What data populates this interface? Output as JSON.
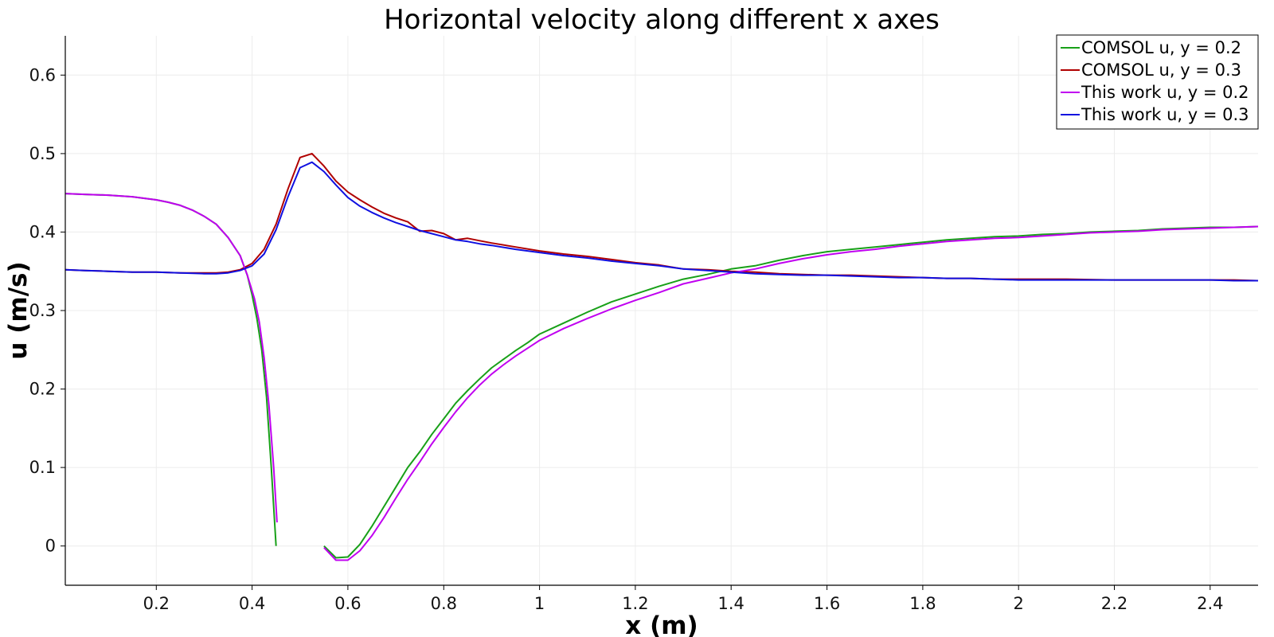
{
  "chart_data": {
    "type": "line",
    "title": "Horizontal velocity along different x axes",
    "xlabel": "x (m)",
    "ylabel": "u (m/s)",
    "xlim": [
      0.01,
      2.5
    ],
    "ylim": [
      -0.05,
      0.65
    ],
    "xticks": [
      0.2,
      0.4,
      0.6,
      0.8,
      1,
      1.2,
      1.4,
      1.6,
      1.8,
      2,
      2.2,
      2.4
    ],
    "xtick_labels": [
      "0.2",
      "0.4",
      "0.6",
      "0.8",
      "1",
      "1.2",
      "1.4",
      "1.6",
      "1.8",
      "2",
      "2.2",
      "2.4"
    ],
    "yticks": [
      0,
      0.1,
      0.2,
      0.3,
      0.4,
      0.5,
      0.6
    ],
    "ytick_labels": [
      "0",
      "0.1",
      "0.2",
      "0.3",
      "0.4",
      "0.5",
      "0.6"
    ],
    "grid": true,
    "legend_position": "top-right",
    "series": [
      {
        "name": "COMSOL u, y = 0.2",
        "color": "#18a018",
        "segments": [
          [
            [
              0.01,
              0.449
            ],
            [
              0.05,
              0.448
            ],
            [
              0.1,
              0.447
            ],
            [
              0.15,
              0.445
            ],
            [
              0.2,
              0.441
            ],
            [
              0.225,
              0.438
            ],
            [
              0.25,
              0.434
            ],
            [
              0.275,
              0.428
            ],
            [
              0.3,
              0.42
            ],
            [
              0.325,
              0.41
            ],
            [
              0.35,
              0.393
            ],
            [
              0.375,
              0.37
            ],
            [
              0.39,
              0.345
            ],
            [
              0.4,
              0.32
            ],
            [
              0.41,
              0.29
            ],
            [
              0.42,
              0.25
            ],
            [
              0.43,
              0.19
            ],
            [
              0.44,
              0.1
            ],
            [
              0.45,
              0.0
            ]
          ],
          [
            [
              0.55,
              0.0
            ],
            [
              0.575,
              -0.015
            ],
            [
              0.6,
              -0.014
            ],
            [
              0.625,
              0.002
            ],
            [
              0.65,
              0.025
            ],
            [
              0.675,
              0.05
            ],
            [
              0.7,
              0.075
            ],
            [
              0.725,
              0.1
            ],
            [
              0.75,
              0.12
            ],
            [
              0.775,
              0.142
            ],
            [
              0.8,
              0.162
            ],
            [
              0.825,
              0.182
            ],
            [
              0.85,
              0.198
            ],
            [
              0.875,
              0.213
            ],
            [
              0.9,
              0.227
            ],
            [
              0.925,
              0.238
            ],
            [
              0.95,
              0.249
            ],
            [
              0.975,
              0.259
            ],
            [
              1.0,
              0.27
            ],
            [
              1.05,
              0.284
            ],
            [
              1.1,
              0.298
            ],
            [
              1.15,
              0.311
            ],
            [
              1.2,
              0.321
            ],
            [
              1.25,
              0.331
            ],
            [
              1.3,
              0.34
            ],
            [
              1.35,
              0.346
            ],
            [
              1.4,
              0.353
            ],
            [
              1.45,
              0.357
            ],
            [
              1.5,
              0.364
            ],
            [
              1.55,
              0.37
            ],
            [
              1.6,
              0.375
            ],
            [
              1.65,
              0.378
            ],
            [
              1.7,
              0.381
            ],
            [
              1.75,
              0.384
            ],
            [
              1.8,
              0.387
            ],
            [
              1.85,
              0.39
            ],
            [
              1.9,
              0.392
            ],
            [
              1.95,
              0.394
            ],
            [
              2.0,
              0.395
            ],
            [
              2.05,
              0.397
            ],
            [
              2.1,
              0.398
            ],
            [
              2.15,
              0.4
            ],
            [
              2.2,
              0.401
            ],
            [
              2.25,
              0.402
            ],
            [
              2.3,
              0.404
            ],
            [
              2.35,
              0.405
            ],
            [
              2.4,
              0.406
            ],
            [
              2.45,
              0.406
            ],
            [
              2.5,
              0.407
            ]
          ]
        ]
      },
      {
        "name": "COMSOL u, y = 0.3",
        "color": "#b00000",
        "segments": [
          [
            [
              0.01,
              0.352
            ],
            [
              0.05,
              0.351
            ],
            [
              0.1,
              0.35
            ],
            [
              0.15,
              0.349
            ],
            [
              0.2,
              0.349
            ],
            [
              0.25,
              0.348
            ],
            [
              0.3,
              0.348
            ],
            [
              0.325,
              0.348
            ],
            [
              0.35,
              0.349
            ],
            [
              0.375,
              0.352
            ],
            [
              0.4,
              0.36
            ],
            [
              0.425,
              0.378
            ],
            [
              0.45,
              0.41
            ],
            [
              0.475,
              0.455
            ],
            [
              0.5,
              0.495
            ],
            [
              0.525,
              0.5
            ],
            [
              0.55,
              0.484
            ],
            [
              0.575,
              0.465
            ],
            [
              0.6,
              0.451
            ],
            [
              0.625,
              0.441
            ],
            [
              0.65,
              0.432
            ],
            [
              0.675,
              0.424
            ],
            [
              0.7,
              0.418
            ],
            [
              0.725,
              0.413
            ],
            [
              0.75,
              0.401
            ],
            [
              0.775,
              0.402
            ],
            [
              0.8,
              0.398
            ],
            [
              0.825,
              0.39
            ],
            [
              0.85,
              0.392
            ],
            [
              0.875,
              0.389
            ],
            [
              0.9,
              0.386
            ],
            [
              0.95,
              0.381
            ],
            [
              1.0,
              0.376
            ],
            [
              1.05,
              0.372
            ],
            [
              1.1,
              0.369
            ],
            [
              1.15,
              0.365
            ],
            [
              1.2,
              0.361
            ],
            [
              1.25,
              0.358
            ],
            [
              1.3,
              0.353
            ],
            [
              1.35,
              0.352
            ],
            [
              1.4,
              0.35
            ],
            [
              1.45,
              0.349
            ],
            [
              1.5,
              0.347
            ],
            [
              1.55,
              0.346
            ],
            [
              1.6,
              0.345
            ],
            [
              1.65,
              0.345
            ],
            [
              1.7,
              0.344
            ],
            [
              1.75,
              0.343
            ],
            [
              1.8,
              0.342
            ],
            [
              1.85,
              0.341
            ],
            [
              1.9,
              0.341
            ],
            [
              1.95,
              0.34
            ],
            [
              2.0,
              0.34
            ],
            [
              2.1,
              0.34
            ],
            [
              2.2,
              0.339
            ],
            [
              2.3,
              0.339
            ],
            [
              2.4,
              0.339
            ],
            [
              2.45,
              0.339
            ],
            [
              2.5,
              0.338
            ]
          ]
        ]
      },
      {
        "name": "This work u, y = 0.2",
        "color": "#c000f0",
        "segments": [
          [
            [
              0.01,
              0.449
            ],
            [
              0.05,
              0.448
            ],
            [
              0.1,
              0.447
            ],
            [
              0.15,
              0.445
            ],
            [
              0.2,
              0.441
            ],
            [
              0.225,
              0.438
            ],
            [
              0.25,
              0.434
            ],
            [
              0.275,
              0.428
            ],
            [
              0.3,
              0.42
            ],
            [
              0.325,
              0.41
            ],
            [
              0.35,
              0.393
            ],
            [
              0.375,
              0.37
            ],
            [
              0.39,
              0.345
            ],
            [
              0.405,
              0.315
            ],
            [
              0.415,
              0.285
            ],
            [
              0.425,
              0.24
            ],
            [
              0.435,
              0.18
            ],
            [
              0.445,
              0.1
            ],
            [
              0.452,
              0.03
            ]
          ],
          [
            [
              0.55,
              -0.002
            ],
            [
              0.575,
              -0.018
            ],
            [
              0.6,
              -0.018
            ],
            [
              0.625,
              -0.006
            ],
            [
              0.65,
              0.013
            ],
            [
              0.675,
              0.036
            ],
            [
              0.7,
              0.061
            ],
            [
              0.725,
              0.085
            ],
            [
              0.75,
              0.107
            ],
            [
              0.775,
              0.13
            ],
            [
              0.8,
              0.151
            ],
            [
              0.825,
              0.171
            ],
            [
              0.85,
              0.189
            ],
            [
              0.875,
              0.205
            ],
            [
              0.9,
              0.219
            ],
            [
              0.925,
              0.231
            ],
            [
              0.95,
              0.242
            ],
            [
              0.975,
              0.252
            ],
            [
              1.0,
              0.262
            ],
            [
              1.05,
              0.277
            ],
            [
              1.1,
              0.29
            ],
            [
              1.15,
              0.302
            ],
            [
              1.2,
              0.313
            ],
            [
              1.25,
              0.323
            ],
            [
              1.3,
              0.334
            ],
            [
              1.35,
              0.341
            ],
            [
              1.4,
              0.348
            ],
            [
              1.45,
              0.353
            ],
            [
              1.5,
              0.36
            ],
            [
              1.55,
              0.366
            ],
            [
              1.6,
              0.371
            ],
            [
              1.65,
              0.375
            ],
            [
              1.7,
              0.378
            ],
            [
              1.75,
              0.382
            ],
            [
              1.8,
              0.385
            ],
            [
              1.85,
              0.388
            ],
            [
              1.9,
              0.39
            ],
            [
              1.95,
              0.392
            ],
            [
              2.0,
              0.393
            ],
            [
              2.05,
              0.395
            ],
            [
              2.1,
              0.397
            ],
            [
              2.15,
              0.399
            ],
            [
              2.2,
              0.4
            ],
            [
              2.25,
              0.401
            ],
            [
              2.3,
              0.403
            ],
            [
              2.35,
              0.404
            ],
            [
              2.4,
              0.405
            ],
            [
              2.45,
              0.406
            ],
            [
              2.5,
              0.407
            ]
          ]
        ]
      },
      {
        "name": "This work u, y = 0.3",
        "color": "#1010e0",
        "segments": [
          [
            [
              0.01,
              0.352
            ],
            [
              0.05,
              0.351
            ],
            [
              0.1,
              0.35
            ],
            [
              0.15,
              0.349
            ],
            [
              0.2,
              0.349
            ],
            [
              0.25,
              0.348
            ],
            [
              0.3,
              0.347
            ],
            [
              0.325,
              0.347
            ],
            [
              0.35,
              0.348
            ],
            [
              0.375,
              0.351
            ],
            [
              0.4,
              0.357
            ],
            [
              0.425,
              0.372
            ],
            [
              0.45,
              0.403
            ],
            [
              0.475,
              0.445
            ],
            [
              0.5,
              0.482
            ],
            [
              0.525,
              0.489
            ],
            [
              0.55,
              0.477
            ],
            [
              0.575,
              0.46
            ],
            [
              0.6,
              0.444
            ],
            [
              0.625,
              0.433
            ],
            [
              0.65,
              0.425
            ],
            [
              0.675,
              0.418
            ],
            [
              0.7,
              0.412
            ],
            [
              0.725,
              0.407
            ],
            [
              0.75,
              0.402
            ],
            [
              0.775,
              0.398
            ],
            [
              0.8,
              0.394
            ],
            [
              0.825,
              0.39
            ],
            [
              0.85,
              0.388
            ],
            [
              0.875,
              0.385
            ],
            [
              0.9,
              0.383
            ],
            [
              0.95,
              0.378
            ],
            [
              1.0,
              0.374
            ],
            [
              1.05,
              0.37
            ],
            [
              1.1,
              0.367
            ],
            [
              1.15,
              0.363
            ],
            [
              1.2,
              0.36
            ],
            [
              1.25,
              0.357
            ],
            [
              1.3,
              0.353
            ],
            [
              1.35,
              0.351
            ],
            [
              1.4,
              0.349
            ],
            [
              1.45,
              0.347
            ],
            [
              1.5,
              0.346
            ],
            [
              1.55,
              0.345
            ],
            [
              1.6,
              0.345
            ],
            [
              1.65,
              0.344
            ],
            [
              1.7,
              0.343
            ],
            [
              1.75,
              0.342
            ],
            [
              1.8,
              0.342
            ],
            [
              1.85,
              0.341
            ],
            [
              1.9,
              0.341
            ],
            [
              1.95,
              0.34
            ],
            [
              2.0,
              0.339
            ],
            [
              2.1,
              0.339
            ],
            [
              2.2,
              0.339
            ],
            [
              2.3,
              0.339
            ],
            [
              2.4,
              0.339
            ],
            [
              2.45,
              0.338
            ],
            [
              2.5,
              0.338
            ]
          ]
        ]
      }
    ]
  }
}
